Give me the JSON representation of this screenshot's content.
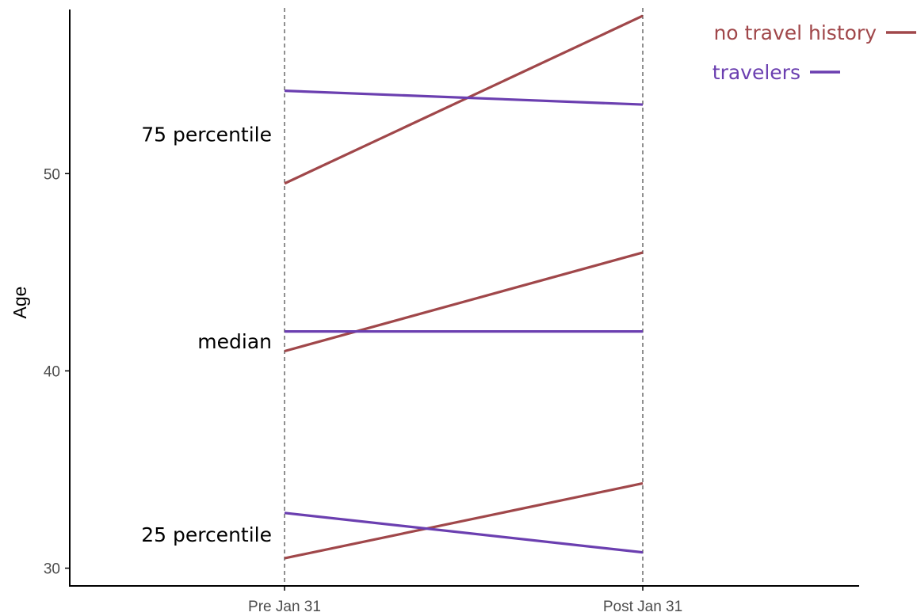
{
  "chart_data": {
    "type": "line",
    "x_categories": [
      "Pre Jan 31",
      "Post Jan 31"
    ],
    "ylabel": "Age",
    "ylim": [
      29.1,
      58.4
    ],
    "y_ticks": [
      30,
      40,
      50
    ],
    "grid": false,
    "legend_position": "top-right",
    "series": [
      {
        "name": "no travel history",
        "color": "#A0474A",
        "lines": [
          {
            "stat": "75 percentile",
            "values": [
              49.5,
              58
            ]
          },
          {
            "stat": "median",
            "values": [
              41,
              46
            ]
          },
          {
            "stat": "25 percentile",
            "values": [
              30.5,
              34.3
            ]
          }
        ]
      },
      {
        "name": "travelers",
        "color": "#6B3FB0",
        "lines": [
          {
            "stat": "75 percentile",
            "values": [
              54.2,
              53.5
            ]
          },
          {
            "stat": "median",
            "values": [
              42,
              42
            ]
          },
          {
            "stat": "25 percentile",
            "values": [
              32.8,
              30.8
            ]
          }
        ]
      }
    ],
    "annotations": [
      {
        "text": "75 percentile",
        "y": 52
      },
      {
        "text": "median",
        "y": 41.5
      },
      {
        "text": "25 percentile",
        "y": 31.7
      }
    ]
  }
}
